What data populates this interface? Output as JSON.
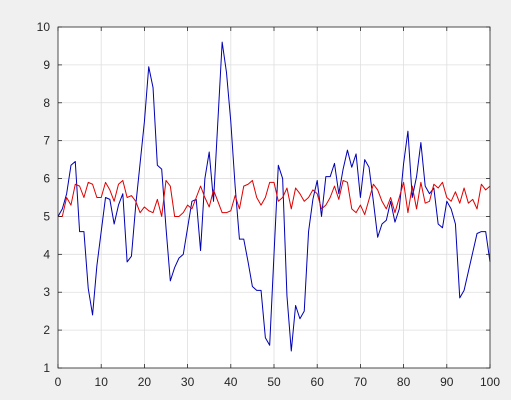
{
  "chart_data": {
    "type": "line",
    "title": "",
    "xlabel": "",
    "ylabel": "",
    "xlim": [
      0,
      100
    ],
    "ylim": [
      1,
      10
    ],
    "x_ticks": [
      "0",
      "10",
      "20",
      "30",
      "40",
      "50",
      "60",
      "70",
      "80",
      "90",
      "100"
    ],
    "y_ticks": [
      "1",
      "2",
      "3",
      "4",
      "5",
      "6",
      "7",
      "8",
      "9",
      "10"
    ],
    "grid": true,
    "legend": "none",
    "series": [
      {
        "color": "#0000b4",
        "x": [
          0,
          1,
          2,
          3,
          4,
          5,
          6,
          7,
          8,
          9,
          10,
          11,
          12,
          13,
          14,
          15,
          16,
          17,
          18,
          19,
          20,
          21,
          22,
          23,
          24,
          25,
          26,
          27,
          28,
          29,
          30,
          31,
          32,
          33,
          34,
          35,
          36,
          37,
          38,
          39,
          40,
          41,
          42,
          43,
          44,
          45,
          46,
          47,
          48,
          49,
          50,
          51,
          52,
          53,
          54,
          55,
          56,
          57,
          58,
          59,
          60,
          61,
          62,
          63,
          64,
          65,
          66,
          67,
          68,
          69,
          70,
          71,
          72,
          73,
          74,
          75,
          76,
          77,
          78,
          79,
          80,
          81,
          82,
          83,
          84,
          85,
          86,
          87,
          88,
          89,
          90,
          91,
          92,
          93,
          94,
          95,
          96,
          97,
          98,
          99,
          100
        ],
        "values": [
          5.0,
          5.2,
          5.6,
          6.35,
          6.45,
          4.6,
          4.6,
          3.1,
          2.4,
          3.7,
          4.6,
          5.5,
          5.45,
          4.8,
          5.3,
          5.6,
          3.8,
          3.95,
          5.3,
          6.4,
          7.5,
          8.95,
          8.4,
          6.35,
          6.25,
          4.7,
          3.3,
          3.65,
          3.9,
          4.0,
          4.7,
          5.4,
          5.45,
          4.1,
          6.0,
          6.7,
          5.4,
          7.5,
          9.6,
          8.8,
          7.5,
          5.8,
          4.4,
          4.4,
          3.8,
          3.15,
          3.05,
          3.05,
          1.8,
          1.6,
          4.0,
          6.35,
          6.0,
          2.9,
          1.45,
          2.65,
          2.3,
          2.5,
          4.6,
          5.45,
          5.95,
          5.0,
          6.05,
          6.05,
          6.4,
          5.6,
          6.25,
          6.75,
          6.3,
          6.65,
          5.5,
          6.5,
          6.3,
          5.4,
          4.45,
          4.8,
          4.9,
          5.4,
          4.85,
          5.2,
          6.4,
          7.25,
          5.5,
          6.05,
          6.95,
          5.8,
          5.6,
          5.75,
          4.8,
          4.7,
          5.4,
          5.2,
          4.8,
          2.85,
          3.05,
          3.55,
          4.05,
          4.55,
          4.6,
          4.6,
          3.8
        ]
      },
      {
        "color": "#e00000",
        "x": [
          0,
          1,
          2,
          3,
          4,
          5,
          6,
          7,
          8,
          9,
          10,
          11,
          12,
          13,
          14,
          15,
          16,
          17,
          18,
          19,
          20,
          21,
          22,
          23,
          24,
          25,
          26,
          27,
          28,
          29,
          30,
          31,
          32,
          33,
          34,
          35,
          36,
          37,
          38,
          39,
          40,
          41,
          42,
          43,
          44,
          45,
          46,
          47,
          48,
          49,
          50,
          51,
          52,
          53,
          54,
          55,
          56,
          57,
          58,
          59,
          60,
          61,
          62,
          63,
          64,
          65,
          66,
          67,
          68,
          69,
          70,
          71,
          72,
          73,
          74,
          75,
          76,
          77,
          78,
          79,
          80,
          81,
          82,
          83,
          84,
          85,
          86,
          87,
          88,
          89,
          90,
          91,
          92,
          93,
          94,
          95,
          96,
          97,
          98,
          99,
          100
        ],
        "values": [
          5.0,
          5.0,
          5.5,
          5.3,
          5.85,
          5.8,
          5.5,
          5.9,
          5.85,
          5.5,
          5.5,
          5.9,
          5.7,
          5.4,
          5.85,
          5.95,
          5.5,
          5.55,
          5.4,
          5.1,
          5.25,
          5.15,
          5.1,
          5.45,
          5.0,
          5.95,
          5.8,
          5.0,
          5.0,
          5.1,
          5.3,
          5.2,
          5.5,
          5.8,
          5.5,
          5.25,
          5.7,
          5.4,
          5.1,
          5.1,
          5.15,
          5.55,
          5.2,
          5.8,
          5.85,
          5.95,
          5.5,
          5.3,
          5.5,
          5.9,
          5.9,
          5.4,
          5.5,
          5.75,
          5.2,
          5.75,
          5.6,
          5.4,
          5.5,
          5.7,
          5.6,
          5.2,
          5.3,
          5.5,
          5.8,
          5.45,
          5.95,
          5.9,
          5.2,
          5.1,
          5.3,
          5.05,
          5.45,
          5.85,
          5.7,
          5.4,
          5.2,
          5.5,
          5.1,
          5.5,
          5.9,
          5.1,
          5.8,
          5.2,
          5.9,
          5.35,
          5.4,
          5.85,
          5.75,
          5.9,
          5.5,
          5.4,
          5.65,
          5.35,
          5.75,
          5.35,
          5.45,
          5.2,
          5.85,
          5.7,
          5.8
        ]
      }
    ]
  }
}
